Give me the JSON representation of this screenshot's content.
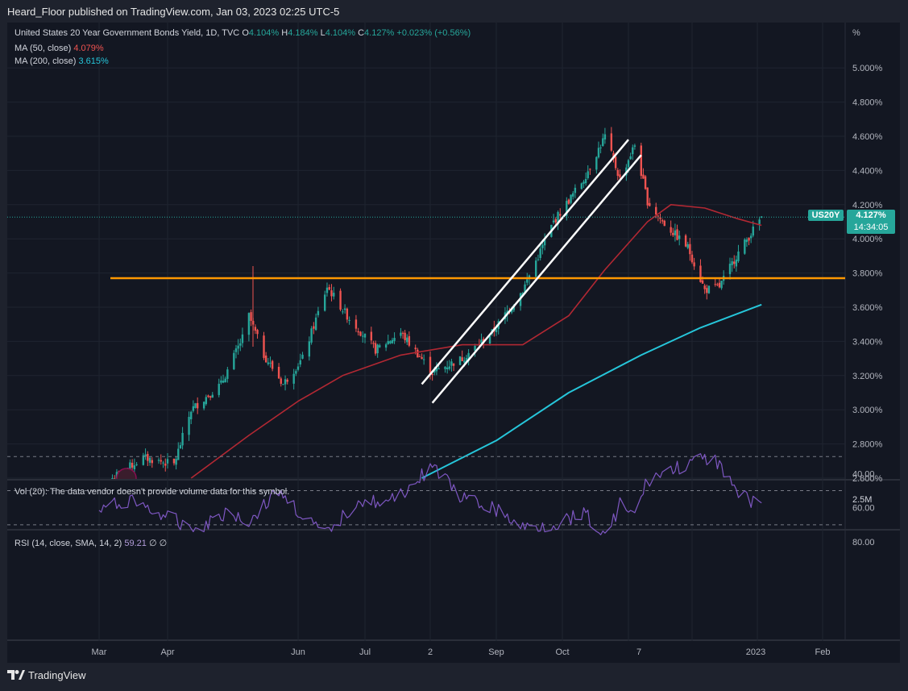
{
  "publisher_line": "Heard_Floor published on TradingView.com, Jan 03, 2023 02:25 UTC-5",
  "legend": {
    "symbol": "United States 20 Year Government Bonds Yield, 1D, TVC",
    "o_label": "O",
    "o_val": "4.104%",
    "h_label": "H",
    "h_val": "4.184%",
    "l_label": "L",
    "l_val": "4.104%",
    "c_label": "C",
    "c_val": "4.127%",
    "change": "+0.023% (+0.56%)",
    "ma50_label": "MA (50, close)",
    "ma50_val": "4.079%",
    "ma200_label": "MA (200, close)",
    "ma200_val": "3.615%"
  },
  "price_badge": {
    "ticker": "US20Y",
    "price": "4.127%",
    "countdown": "14:34:05",
    "color": "#26a69a"
  },
  "volume_pane": {
    "text": "Vol (20): The data vendor doesn't provide volume data for this symbol.",
    "axis_label": "2.5M"
  },
  "rsi_pane": {
    "label": "RSI (14, close, SMA, 14, 2)",
    "value": "59.21",
    "extra1": "∅",
    "extra2": "∅"
  },
  "footer": {
    "brand": "TradingView"
  },
  "colors": {
    "up": "#26a69a",
    "down": "#ef5350",
    "ma50": "#b22833",
    "ma200": "#26c6da",
    "rsi": "#7e57c2",
    "level": "#ff9800",
    "channel": "#ffffff"
  },
  "chart_data": {
    "type": "candlestick",
    "price_unit": "%",
    "y_axis_unit_label": "%",
    "y_ticks": [
      "5.000%",
      "4.800%",
      "4.600%",
      "4.400%",
      "4.200%",
      "4.000%",
      "3.800%",
      "3.600%",
      "3.400%",
      "3.200%",
      "3.000%",
      "2.800%",
      "2.600%"
    ],
    "y_tick_values": [
      5.0,
      4.8,
      4.6,
      4.4,
      4.2,
      4.0,
      3.8,
      3.6,
      3.4,
      3.2,
      3.0,
      2.8,
      2.6
    ],
    "ylim": [
      2.6,
      5.2
    ],
    "x_ticks": [
      "Mar",
      "Apr",
      "Jun",
      "Jul",
      "2",
      "Sep",
      "Oct",
      "7",
      "2023",
      "Feb"
    ],
    "x_range_months": [
      "2022-02",
      "2023-02"
    ],
    "price_path": [
      [
        "2022-03-07",
        2.6
      ],
      [
        "2022-03-21",
        2.72
      ],
      [
        "2022-04-04",
        2.68
      ],
      [
        "2022-04-12",
        3.0
      ],
      [
        "2022-04-26",
        3.15
      ],
      [
        "2022-05-06",
        3.42
      ],
      [
        "2022-05-09",
        3.55
      ],
      [
        "2022-05-16",
        3.32
      ],
      [
        "2022-05-25",
        3.15
      ],
      [
        "2022-06-03",
        3.3
      ],
      [
        "2022-06-14",
        3.72
      ],
      [
        "2022-06-23",
        3.55
      ],
      [
        "2022-07-06",
        3.35
      ],
      [
        "2022-07-18",
        3.45
      ],
      [
        "2022-08-02",
        3.22
      ],
      [
        "2022-08-16",
        3.3
      ],
      [
        "2022-08-30",
        3.45
      ],
      [
        "2022-09-13",
        3.7
      ],
      [
        "2022-09-27",
        4.1
      ],
      [
        "2022-10-11",
        4.35
      ],
      [
        "2022-10-21",
        4.6
      ],
      [
        "2022-10-28",
        4.35
      ],
      [
        "2022-11-04",
        4.55
      ],
      [
        "2022-11-10",
        4.22
      ],
      [
        "2022-11-17",
        4.1
      ],
      [
        "2022-11-29",
        3.95
      ],
      [
        "2022-12-07",
        3.7
      ],
      [
        "2022-12-14",
        3.72
      ],
      [
        "2022-12-22",
        3.9
      ],
      [
        "2023-01-03",
        4.127
      ]
    ],
    "ma50": [
      [
        "2022-04-12",
        2.6
      ],
      [
        "2022-05-09",
        2.85
      ],
      [
        "2022-06-01",
        3.05
      ],
      [
        "2022-06-21",
        3.2
      ],
      [
        "2022-07-18",
        3.32
      ],
      [
        "2022-08-16",
        3.38
      ],
      [
        "2022-09-13",
        3.38
      ],
      [
        "2022-10-04",
        3.55
      ],
      [
        "2022-10-21",
        3.82
      ],
      [
        "2022-11-10",
        4.1
      ],
      [
        "2022-11-21",
        4.2
      ],
      [
        "2022-12-07",
        4.18
      ],
      [
        "2022-12-22",
        4.12
      ],
      [
        "2023-01-03",
        4.079
      ]
    ],
    "ma200": [
      [
        "2022-07-28",
        2.6
      ],
      [
        "2022-09-01",
        2.82
      ],
      [
        "2022-10-04",
        3.1
      ],
      [
        "2022-11-07",
        3.32
      ],
      [
        "2022-12-05",
        3.48
      ],
      [
        "2023-01-03",
        3.615
      ]
    ],
    "horizontal_level": 3.77,
    "channel_lines": [
      {
        "from": [
          "2022-07-28",
          3.15
        ],
        "to": [
          "2022-11-01",
          4.58
        ]
      },
      {
        "from": [
          "2022-08-02",
          3.04
        ],
        "to": [
          "2022-11-07",
          4.49
        ]
      }
    ],
    "rsi_ticks": [
      "80.00",
      "60.00",
      "40.00"
    ],
    "rsi_tick_values": [
      80,
      60,
      40
    ],
    "rsi_band": [
      30,
      70
    ],
    "rsi": [
      [
        "2022-03-01",
        62
      ],
      [
        "2022-03-15",
        55
      ],
      [
        "2022-04-01",
        66
      ],
      [
        "2022-04-15",
        72
      ],
      [
        "2022-04-29",
        62
      ],
      [
        "2022-05-09",
        68
      ],
      [
        "2022-05-23",
        50
      ],
      [
        "2022-06-07",
        70
      ],
      [
        "2022-06-14",
        76
      ],
      [
        "2022-06-28",
        55
      ],
      [
        "2022-07-12",
        58
      ],
      [
        "2022-07-26",
        44
      ],
      [
        "2022-08-02",
        35
      ],
      [
        "2022-08-16",
        55
      ],
      [
        "2022-08-30",
        60
      ],
      [
        "2022-09-13",
        72
      ],
      [
        "2022-09-27",
        70
      ],
      [
        "2022-10-11",
        62
      ],
      [
        "2022-10-21",
        78
      ],
      [
        "2022-10-28",
        58
      ],
      [
        "2022-11-04",
        65
      ],
      [
        "2022-11-10",
        44
      ],
      [
        "2022-11-21",
        38
      ],
      [
        "2022-12-07",
        32
      ],
      [
        "2022-12-14",
        33
      ],
      [
        "2022-12-22",
        52
      ],
      [
        "2023-01-03",
        59.21
      ]
    ]
  }
}
